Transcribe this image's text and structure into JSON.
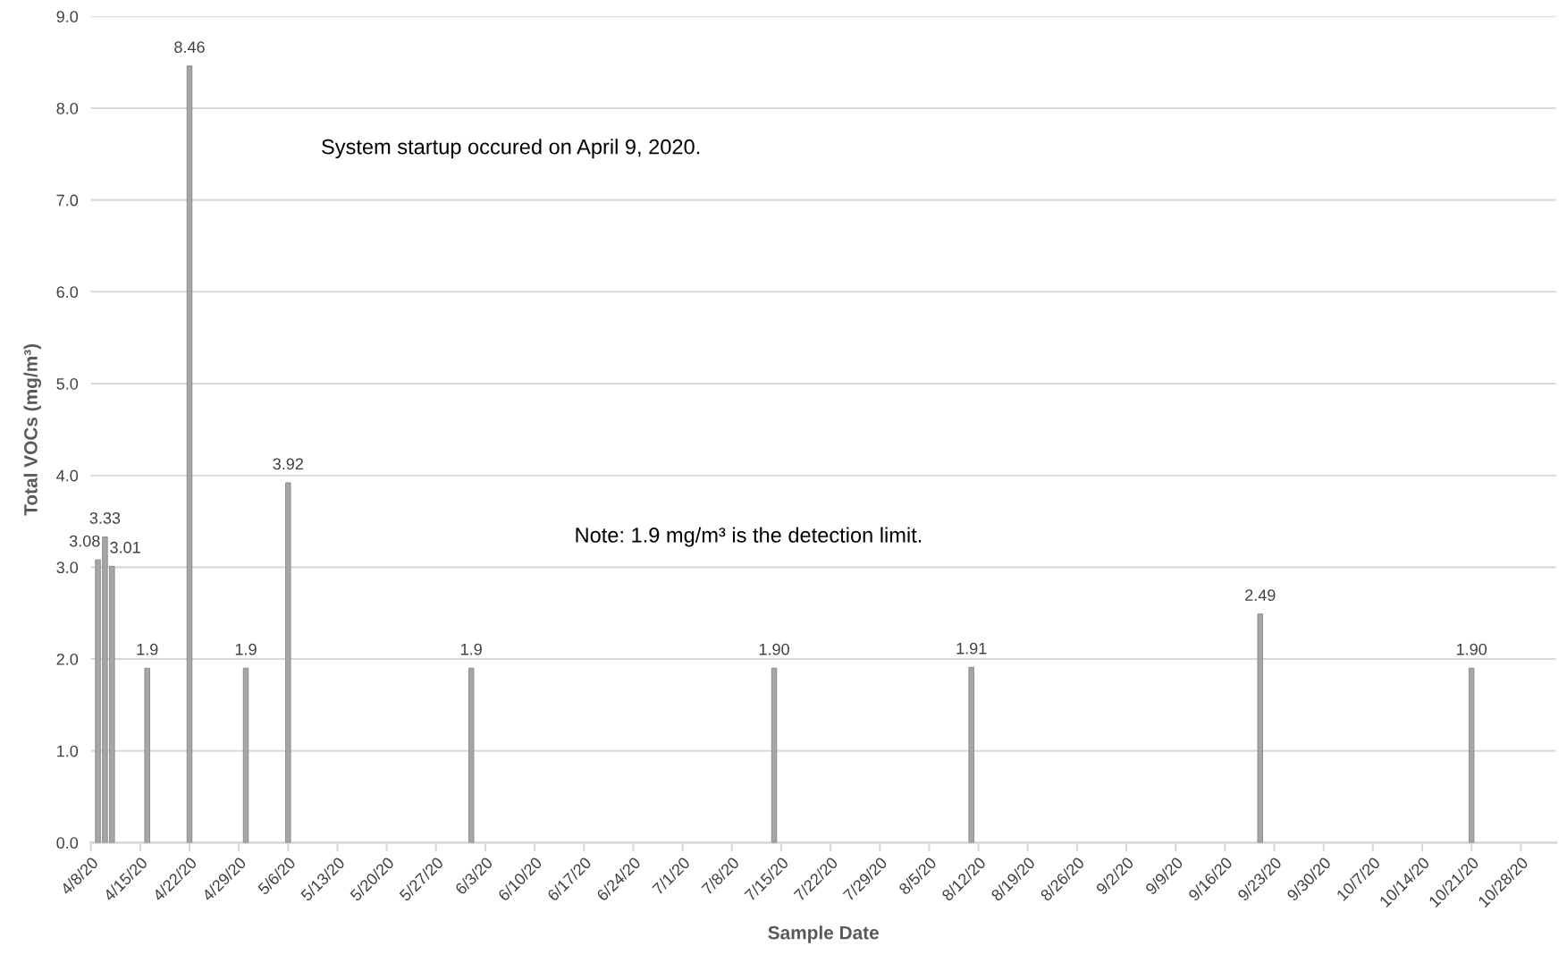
{
  "chart_data": {
    "type": "bar",
    "xlabel": "Sample Date",
    "ylabel": "Total VOCs (mg/m³)",
    "x": [
      "2020-04-09",
      "2020-04-10",
      "2020-04-11",
      "2020-04-16",
      "2020-04-22",
      "2020-04-30",
      "2020-05-06",
      "2020-06-01",
      "2020-07-14",
      "2020-08-11",
      "2020-09-21",
      "2020-10-21"
    ],
    "values": [
      3.08,
      3.33,
      3.01,
      1.9,
      8.46,
      1.9,
      3.92,
      1.9,
      1.9,
      1.91,
      2.49,
      1.9
    ],
    "value_labels": [
      "3.08",
      "3.33",
      "3.01",
      "1.9",
      "8.46",
      "1.9",
      "3.92",
      "1.9",
      "1.90",
      "1.91",
      "2.49",
      "1.90"
    ],
    "color": "#a6a6a6",
    "xlim": [
      "2020-04-08",
      "2020-11-02"
    ],
    "xticks": [
      {
        "value": "2020-04-08",
        "label": "4/8/20"
      },
      {
        "value": "2020-04-15",
        "label": "4/15/20"
      },
      {
        "value": "2020-04-22",
        "label": "4/22/20"
      },
      {
        "value": "2020-04-29",
        "label": "4/29/20"
      },
      {
        "value": "2020-05-06",
        "label": "5/6/20"
      },
      {
        "value": "2020-05-13",
        "label": "5/13/20"
      },
      {
        "value": "2020-05-20",
        "label": "5/20/20"
      },
      {
        "value": "2020-05-27",
        "label": "5/27/20"
      },
      {
        "value": "2020-06-03",
        "label": "6/3/20"
      },
      {
        "value": "2020-06-10",
        "label": "6/10/20"
      },
      {
        "value": "2020-06-17",
        "label": "6/17/20"
      },
      {
        "value": "2020-06-24",
        "label": "6/24/20"
      },
      {
        "value": "2020-07-01",
        "label": "7/1/20"
      },
      {
        "value": "2020-07-08",
        "label": "7/8/20"
      },
      {
        "value": "2020-07-15",
        "label": "7/15/20"
      },
      {
        "value": "2020-07-22",
        "label": "7/22/20"
      },
      {
        "value": "2020-07-29",
        "label": "7/29/20"
      },
      {
        "value": "2020-08-05",
        "label": "8/5/20"
      },
      {
        "value": "2020-08-12",
        "label": "8/12/20"
      },
      {
        "value": "2020-08-19",
        "label": "8/19/20"
      },
      {
        "value": "2020-08-26",
        "label": "8/26/20"
      },
      {
        "value": "2020-09-02",
        "label": "9/2/20"
      },
      {
        "value": "2020-09-09",
        "label": "9/9/20"
      },
      {
        "value": "2020-09-16",
        "label": "9/16/20"
      },
      {
        "value": "2020-09-23",
        "label": "9/23/20"
      },
      {
        "value": "2020-09-30",
        "label": "9/30/20"
      },
      {
        "value": "2020-10-07",
        "label": "10/7/20"
      },
      {
        "value": "2020-10-14",
        "label": "10/14/20"
      },
      {
        "value": "2020-10-21",
        "label": "10/21/20"
      },
      {
        "value": "2020-10-28",
        "label": "10/28/20"
      }
    ],
    "ylim": [
      0,
      9
    ],
    "yticks": [
      {
        "value": 0,
        "label": "0.0"
      },
      {
        "value": 1,
        "label": "1.0"
      },
      {
        "value": 2,
        "label": "2.0"
      },
      {
        "value": 3,
        "label": "3.0"
      },
      {
        "value": 4,
        "label": "4.0"
      },
      {
        "value": 5,
        "label": "5.0"
      },
      {
        "value": 6,
        "label": "6.0"
      },
      {
        "value": 7,
        "label": "7.0"
      },
      {
        "value": 8,
        "label": "8.0"
      },
      {
        "value": 9,
        "label": "9.0"
      }
    ],
    "grid": "y",
    "annotations": [
      "System startup occured on April 9, 2020.",
      "Note: 1.9 mg/m³ is the detection limit."
    ]
  }
}
